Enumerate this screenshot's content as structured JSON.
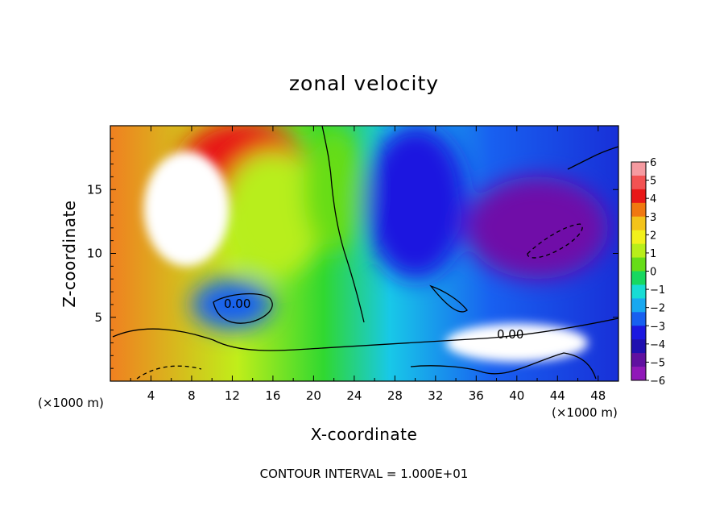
{
  "chart_data": {
    "type": "heatmap",
    "title": "zonal velocity",
    "xlabel": "X-coordinate",
    "ylabel": "Z-coordinate",
    "x_unit_label": "(×1000 m)",
    "x_unit_label_right": "(×1000 m)",
    "xlim": [
      0,
      50
    ],
    "ylim": [
      0,
      20
    ],
    "x_ticks": [
      4,
      8,
      12,
      16,
      20,
      24,
      28,
      32,
      36,
      40,
      44,
      48
    ],
    "y_ticks": [
      5,
      10,
      15
    ],
    "colorbar": {
      "min": -6,
      "max": 6,
      "ticks": [
        6,
        5,
        4,
        3,
        2,
        1,
        0,
        -1,
        -2,
        -3,
        -4,
        -5,
        -6
      ],
      "tick_labels": [
        "6",
        "5",
        "4",
        "3",
        "2",
        "1",
        "0",
        "−1",
        "−2",
        "−3",
        "−4",
        "−5",
        "−6"
      ],
      "colors": [
        "#f59aa0",
        "#f25252",
        "#e81818",
        "#f07810",
        "#f3c31a",
        "#f2f01c",
        "#b8ee1a",
        "#66dd18",
        "#18d860",
        "#18dcd4",
        "#18a8f0",
        "#1860f0",
        "#1c18e0",
        "#2010b0",
        "#6010a0",
        "#9018b8"
      ]
    },
    "contour_label": "0.00",
    "contour_label_2": "0.00",
    "footer": "CONTOUR INTERVAL = 1.000E+01",
    "regions": [
      {
        "kind": "wind-lobe",
        "x": 7.5,
        "z": 13.5,
        "value": 6.5,
        "rx": 4.2,
        "rz": 4.5
      },
      {
        "kind": "wind-lobe",
        "x": 13,
        "z": 17,
        "value": 4.5,
        "rx": 6,
        "rz": 3.5
      },
      {
        "kind": "wind-lobe",
        "x": 16,
        "z": 13,
        "value": 1.2,
        "rx": 5,
        "rz": 5
      },
      {
        "kind": "wind-lobe",
        "x": 22,
        "z": 15,
        "value": 0.4,
        "rx": 3,
        "rz": 5
      },
      {
        "kind": "wind-lobe",
        "x": 30,
        "z": 14,
        "value": -3.5,
        "rx": 5,
        "rz": 6
      },
      {
        "kind": "wind-lobe",
        "x": 42,
        "z": 12,
        "value": -6.5,
        "rx": 7,
        "rz": 4
      },
      {
        "kind": "wind-lobe",
        "x": 40,
        "z": 3,
        "value": 6.5,
        "rx": 7,
        "rz": 1.5
      },
      {
        "kind": "wind-lobe",
        "x": 12,
        "z": 6,
        "value": -2.5,
        "rx": 4,
        "rz": 2
      }
    ]
  }
}
